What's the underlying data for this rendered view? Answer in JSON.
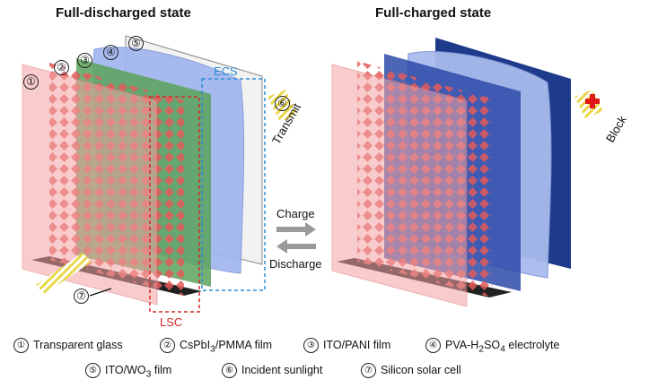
{
  "titles": {
    "left": "Full-discharged state",
    "right": "Full-charged state"
  },
  "labels": {
    "ecs": "ECS",
    "lsc": "LSC",
    "transmit": "Transmit",
    "block": "Block",
    "charge": "Charge",
    "discharge": "Discharge"
  },
  "markers": [
    "①",
    "②",
    "③",
    "④",
    "⑤",
    "⑥",
    "⑦"
  ],
  "legend": [
    {
      "num": "①",
      "text": "Transparent glass"
    },
    {
      "num": "②",
      "text": "CsPbI",
      "sub": "3",
      "tail": "/PMMA film"
    },
    {
      "num": "③",
      "text": "ITO/PANI film"
    },
    {
      "num": "④",
      "text": "PVA-H",
      "sub": "2",
      "tail": "SO",
      "sub2": "4",
      "tail2": " electrolyte"
    },
    {
      "num": "⑤",
      "text": "ITO/WO",
      "sub": "3",
      "tail": " film"
    },
    {
      "num": "⑥",
      "text": "Incident sunlight"
    },
    {
      "num": "⑦",
      "text": "Silicon solar cell"
    }
  ],
  "colors": {
    "glass": "#f4a3a3",
    "perovskite": "#e35a5a",
    "pani_green": "#5aa25a",
    "electrolyte": "#9fb4ef",
    "wo3_charged": "#1e3a8a",
    "ecs_box": "#2c8fd6",
    "lsc_box": "#d62828",
    "sunlight": "#e8d84a",
    "arrow_gray": "#9a9a9a"
  }
}
